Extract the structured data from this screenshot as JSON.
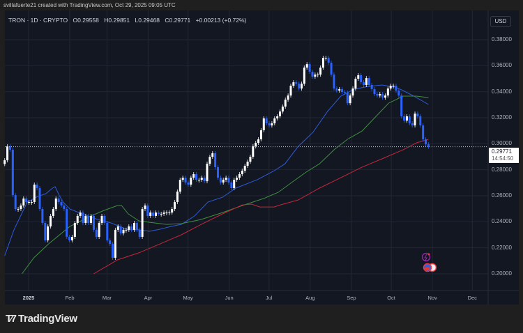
{
  "header": {
    "caption": "svillafuerte21 created with TradingView.com, Oct 29, 2025 09:05 UTC"
  },
  "legend": {
    "symbol": "TRON · 1D · CRYPTO",
    "open": "O0.29558",
    "high": "H0.29851",
    "low": "L0.29468",
    "close": "C0.29771",
    "change": "+0.00213 (+0.72%)"
  },
  "currency_button": "USD",
  "last_price": {
    "value": "0.29771",
    "countdown": "14:54:50"
  },
  "logo_text": "TradingView",
  "colors": {
    "up": "#ffffff",
    "down": "#2962ff",
    "ma_blue": "#2f5bd8",
    "ma_green": "#3f8f3f",
    "ma_red": "#c4283a",
    "background": "#131722"
  },
  "icons": [
    "lightning-event-icon",
    "us-flag-event-icon"
  ],
  "chart_data": {
    "type": "candlestick",
    "title": "TRON · 1D · CRYPTO",
    "y_ticks": [
      "0.20000",
      "0.22000",
      "0.24000",
      "0.26000",
      "0.28000",
      "0.30000",
      "0.32000",
      "0.34000",
      "0.36000",
      "0.38000"
    ],
    "x_ticks": [
      {
        "label": "2025",
        "date": "2025-01-01"
      },
      {
        "label": "Feb",
        "date": "2025-02-01"
      },
      {
        "label": "Mar",
        "date": "2025-03-01"
      },
      {
        "label": "Apr",
        "date": "2025-04-01"
      },
      {
        "label": "May",
        "date": "2025-05-01"
      },
      {
        "label": "Jun",
        "date": "2025-06-01"
      },
      {
        "label": "Jul",
        "date": "2025-07-01"
      },
      {
        "label": "Aug",
        "date": "2025-08-01"
      },
      {
        "label": "Sep",
        "date": "2025-09-01"
      },
      {
        "label": "Oct",
        "date": "2025-10-01"
      },
      {
        "label": "Nov",
        "date": "2025-11-01"
      },
      {
        "label": "Dec",
        "date": "2025-12-01"
      }
    ],
    "ylim": [
      0.195,
      0.39
    ],
    "grid": true,
    "closes_start": "2024-12-14",
    "closes_end": "2025-10-29",
    "closes": [
      0.2873,
      0.298,
      0.2954,
      0.2605,
      0.2498,
      0.2498,
      0.2525,
      0.2579,
      0.2552,
      0.2552,
      0.2552,
      0.2686,
      0.2659,
      0.2498,
      0.2391,
      0.2257,
      0.2364,
      0.2445,
      0.2498,
      0.2579,
      0.2552,
      0.2525,
      0.2498,
      0.2284,
      0.2257,
      0.2284,
      0.2391,
      0.2445,
      0.2471,
      0.2391,
      0.2445,
      0.2391,
      0.2445,
      0.2338,
      0.2284,
      0.2391,
      0.2445,
      0.2391,
      0.2257,
      0.223,
      0.2123,
      0.2338,
      0.2364,
      0.2311,
      0.2338,
      0.2338,
      0.2364,
      0.2338,
      0.2391,
      0.2338,
      0.2284,
      0.2498,
      0.2525,
      0.2445,
      0.2471,
      0.2445,
      0.2471,
      0.2461,
      0.2461,
      0.2471,
      0.2471,
      0.2471,
      0.2498,
      0.2552,
      0.2632,
      0.2723,
      0.2739,
      0.2702,
      0.2686,
      0.2739,
      0.2766,
      0.2723,
      0.2723,
      0.2739,
      0.2712,
      0.2846,
      0.29,
      0.2927,
      0.282,
      0.2739,
      0.2702,
      0.2723,
      0.2739,
      0.2702,
      0.2659,
      0.2723,
      0.2739,
      0.2766,
      0.2793,
      0.283,
      0.2862,
      0.29,
      0.298,
      0.3007,
      0.3034,
      0.3104,
      0.3195,
      0.3157,
      0.3141,
      0.3157,
      0.3195,
      0.3211,
      0.3248,
      0.3286,
      0.3339,
      0.3371,
      0.3446,
      0.3473,
      0.3462,
      0.3425,
      0.3462,
      0.3586,
      0.3612,
      0.3554,
      0.3516,
      0.3532,
      0.3532,
      0.3586,
      0.3661,
      0.3661,
      0.3623,
      0.3532,
      0.3425,
      0.3409,
      0.342,
      0.3398,
      0.3393,
      0.3312,
      0.3371,
      0.3425,
      0.35,
      0.3527,
      0.3473,
      0.3452,
      0.3505,
      0.3452,
      0.342,
      0.3382,
      0.3371,
      0.3382,
      0.3355,
      0.3371,
      0.3425,
      0.3446,
      0.3446,
      0.3409,
      0.3371,
      0.3211,
      0.3178,
      0.3211,
      0.3157,
      0.3141,
      0.3232,
      0.3211,
      0.3141,
      0.3034,
      0.2996,
      0.29771
    ],
    "moving_averages": [
      {
        "color": "#2f5bd8",
        "points": [
          [
            "2024-12-14",
            0.2139
          ],
          [
            "2024-12-21",
            0.2338
          ],
          [
            "2024-12-31",
            0.2552
          ],
          [
            "2025-01-08",
            0.2595
          ],
          [
            "2025-01-14",
            0.2616
          ],
          [
            "2025-01-19",
            0.2659
          ],
          [
            "2025-01-21",
            0.267
          ],
          [
            "2025-01-24",
            0.2605
          ],
          [
            "2025-01-27",
            0.2552
          ],
          [
            "2025-02-01",
            0.2498
          ],
          [
            "2025-02-09",
            0.2466
          ],
          [
            "2025-02-22",
            0.2418
          ],
          [
            "2025-03-04",
            0.2391
          ],
          [
            "2025-03-17",
            0.2338
          ],
          [
            "2025-03-25",
            0.2338
          ],
          [
            "2025-04-02",
            0.2327
          ],
          [
            "2025-04-10",
            0.2343
          ],
          [
            "2025-04-18",
            0.2364
          ],
          [
            "2025-04-26",
            0.238
          ],
          [
            "2025-05-06",
            0.2445
          ],
          [
            "2025-05-16",
            0.2552
          ],
          [
            "2025-05-27",
            0.2589
          ],
          [
            "2025-06-06",
            0.2659
          ],
          [
            "2025-06-22",
            0.2723
          ],
          [
            "2025-07-05",
            0.2793
          ],
          [
            "2025-07-13",
            0.2846
          ],
          [
            "2025-07-23",
            0.298
          ],
          [
            "2025-08-03",
            0.3087
          ],
          [
            "2025-08-14",
            0.3248
          ],
          [
            "2025-08-24",
            0.3366
          ],
          [
            "2025-09-03",
            0.342
          ],
          [
            "2025-09-14",
            0.3441
          ],
          [
            "2025-09-24",
            0.3452
          ],
          [
            "2025-10-04",
            0.3436
          ],
          [
            "2025-10-10",
            0.3409
          ],
          [
            "2025-10-20",
            0.3355
          ],
          [
            "2025-10-29",
            0.3302
          ]
        ]
      },
      {
        "color": "#3f8f3f",
        "points": [
          [
            "2024-12-27",
            0.2
          ],
          [
            "2025-01-05",
            0.2123
          ],
          [
            "2025-01-16",
            0.223
          ],
          [
            "2025-02-01",
            0.2364
          ],
          [
            "2025-02-17",
            0.2445
          ],
          [
            "2025-02-27",
            0.2488
          ],
          [
            "2025-03-09",
            0.2525
          ],
          [
            "2025-03-12",
            0.2525
          ],
          [
            "2025-03-17",
            0.2461
          ],
          [
            "2025-03-25",
            0.2407
          ],
          [
            "2025-04-02",
            0.2396
          ],
          [
            "2025-04-15",
            0.238
          ],
          [
            "2025-04-26",
            0.2386
          ],
          [
            "2025-05-11",
            0.2418
          ],
          [
            "2025-05-27",
            0.2471
          ],
          [
            "2025-06-11",
            0.2525
          ],
          [
            "2025-06-27",
            0.2579
          ],
          [
            "2025-07-08",
            0.2627
          ],
          [
            "2025-07-18",
            0.2702
          ],
          [
            "2025-07-29",
            0.2782
          ],
          [
            "2025-08-08",
            0.2846
          ],
          [
            "2025-08-19",
            0.2954
          ],
          [
            "2025-08-29",
            0.3034
          ],
          [
            "2025-09-09",
            0.3098
          ],
          [
            "2025-09-19",
            0.3205
          ],
          [
            "2025-09-29",
            0.3312
          ],
          [
            "2025-10-10",
            0.3366
          ],
          [
            "2025-10-20",
            0.3366
          ],
          [
            "2025-10-29",
            0.3355
          ]
        ]
      },
      {
        "color": "#c4283a",
        "points": [
          [
            "2025-02-19",
            0.2
          ],
          [
            "2025-03-09",
            0.2107
          ],
          [
            "2025-03-25",
            0.2161
          ],
          [
            "2025-04-10",
            0.223
          ],
          [
            "2025-04-26",
            0.23
          ],
          [
            "2025-05-11",
            0.238
          ],
          [
            "2025-05-27",
            0.2461
          ],
          [
            "2025-06-11",
            0.253
          ],
          [
            "2025-06-18",
            0.2536
          ],
          [
            "2025-06-24",
            0.2514
          ],
          [
            "2025-07-05",
            0.2514
          ],
          [
            "2025-07-08",
            0.2525
          ],
          [
            "2025-07-23",
            0.2568
          ],
          [
            "2025-08-08",
            0.2659
          ],
          [
            "2025-08-24",
            0.2739
          ],
          [
            "2025-09-09",
            0.282
          ],
          [
            "2025-09-24",
            0.2884
          ],
          [
            "2025-10-10",
            0.2954
          ],
          [
            "2025-10-20",
            0.3007
          ],
          [
            "2025-10-29",
            0.3034
          ]
        ]
      }
    ]
  }
}
